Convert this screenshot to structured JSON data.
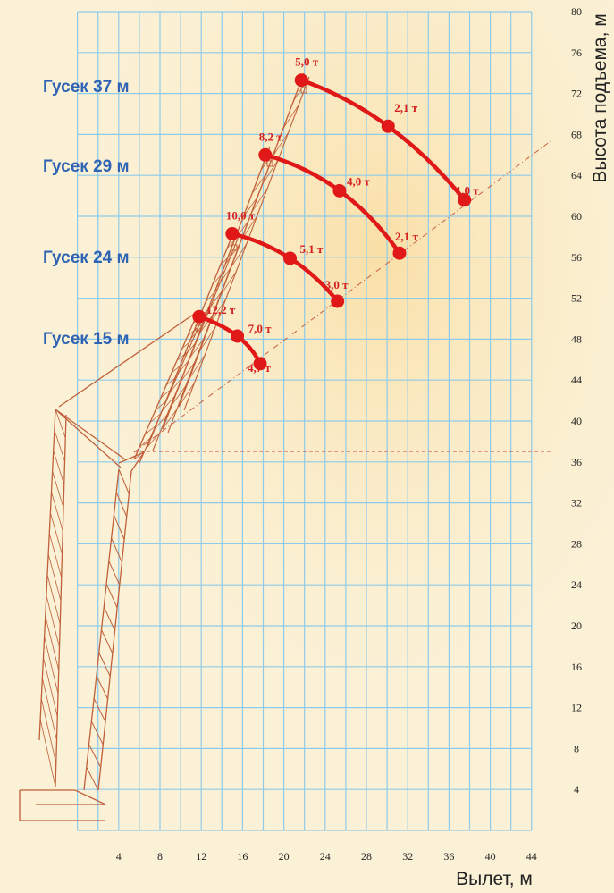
{
  "chart_data": {
    "type": "line",
    "xlabel": "Вылет, м",
    "ylabel": "Высота подъема, м",
    "x_ticks": [
      4,
      8,
      12,
      16,
      20,
      24,
      28,
      32,
      36,
      40,
      44
    ],
    "y_ticks": [
      4,
      8,
      12,
      16,
      20,
      24,
      28,
      32,
      36,
      40,
      44,
      48,
      52,
      56,
      60,
      64,
      68,
      72,
      76,
      80
    ],
    "xlim": [
      0,
      44
    ],
    "ylim": [
      0,
      80
    ],
    "grid": true,
    "colors": {
      "curve": "#e01818",
      "label": "#d42020",
      "series_name": "#2f64b4",
      "grid": "#8ecbea",
      "crane": "#c0603a"
    },
    "series": [
      {
        "name": "Гусек 37 м",
        "x": [
          21.7,
          30.1,
          37.5
        ],
        "y": [
          73.3,
          68.8,
          61.6
        ],
        "labels": [
          "5,0 т",
          "2,1 т",
          "1,0 т"
        ]
      },
      {
        "name": "Гусек 29 м",
        "x": [
          18.2,
          25.4,
          31.2
        ],
        "y": [
          66.0,
          62.5,
          56.4
        ],
        "labels": [
          "8,2 т",
          "4,0 т",
          "2,1 т"
        ]
      },
      {
        "name": "Гусек 24 м",
        "x": [
          15.0,
          20.6,
          25.2
        ],
        "y": [
          58.3,
          55.9,
          51.7
        ],
        "labels": [
          "10,0 т",
          "5,1 т",
          "3,0 т"
        ]
      },
      {
        "name": "Гусек 15 м",
        "x": [
          11.8,
          15.5,
          17.7
        ],
        "y": [
          50.2,
          48.3,
          45.6
        ],
        "labels": [
          "12,2 т",
          "7,0 т",
          "4,7 т"
        ]
      }
    ]
  }
}
